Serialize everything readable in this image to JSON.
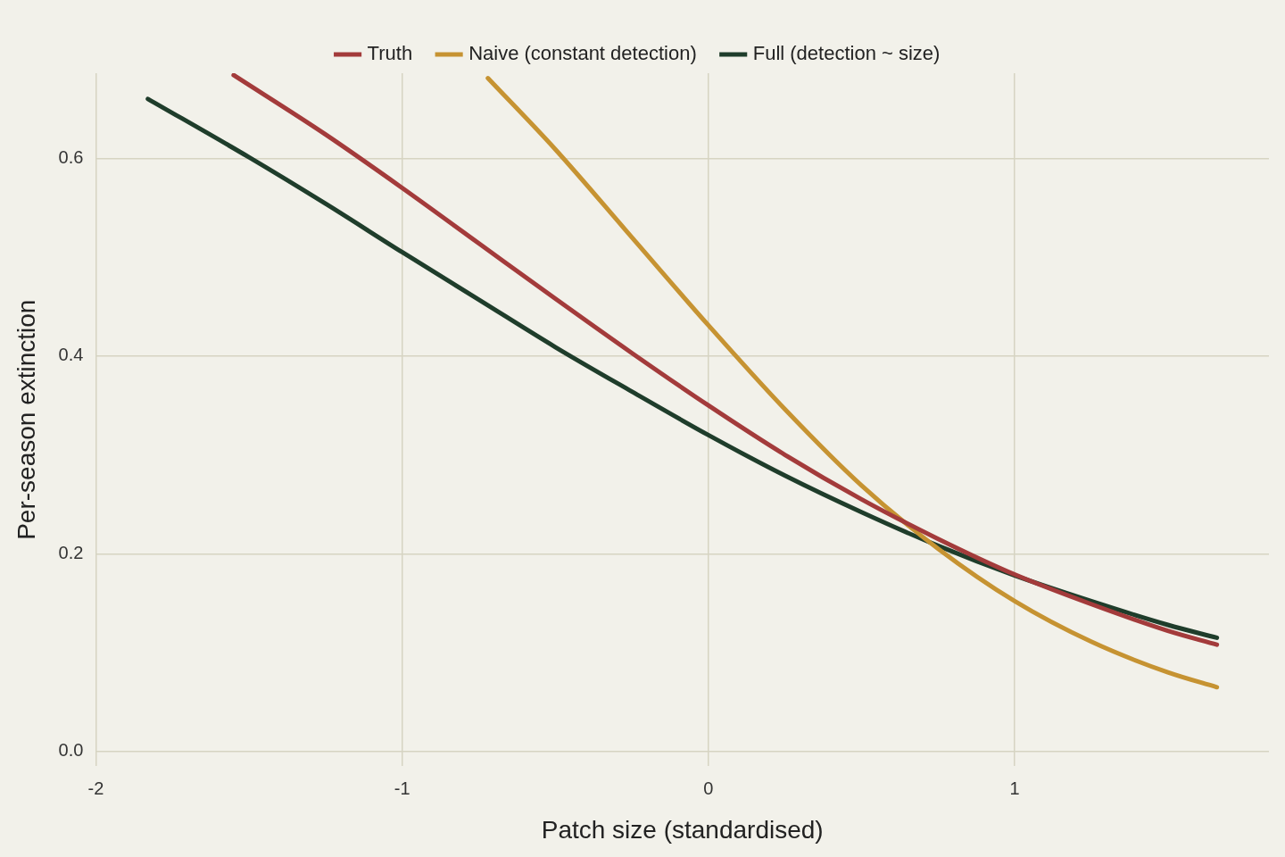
{
  "chart_data": {
    "type": "line",
    "xlabel": "Patch size (standardised)",
    "ylabel": "Per-season extinction",
    "xlim": [
      -2,
      1.83
    ],
    "xticks": [
      -2,
      -1,
      0,
      1
    ],
    "ylim": [
      -0.015,
      0.686
    ],
    "yticks": [
      {
        "value": 0,
        "label": "0.0"
      },
      {
        "value": 0.2,
        "label": "0.2"
      },
      {
        "value": 0.4,
        "label": "0.4"
      },
      {
        "value": 0.6,
        "label": "0.6"
      }
    ],
    "grid": true,
    "legend": "top",
    "marker": "none",
    "line_style": "solid",
    "series": [
      {
        "name": "Truth",
        "color": "#a33b3b",
        "x": [
          -1.55,
          -1.25,
          -1,
          -0.75,
          -0.5,
          -0.25,
          0,
          0.25,
          0.5,
          0.75,
          1,
          1.25,
          1.5,
          1.66
        ],
        "values": [
          0.684,
          0.624,
          0.57,
          0.514,
          0.458,
          0.403,
          0.35,
          0.3,
          0.255,
          0.215,
          0.179,
          0.149,
          0.122,
          0.108
        ]
      },
      {
        "name": "Naive (constant detection)",
        "color": "#c69332",
        "x": [
          -0.72,
          -0.5,
          -0.25,
          0,
          0.25,
          0.5,
          0.75,
          1,
          1.25,
          1.5,
          1.66
        ],
        "values": [
          0.681,
          0.609,
          0.52,
          0.431,
          0.346,
          0.269,
          0.205,
          0.152,
          0.111,
          0.08,
          0.065
        ]
      },
      {
        "name": "Full (detection ~ size)",
        "color": "#1f3d2b",
        "x": [
          -1.83,
          -1.5,
          -1.25,
          -1,
          -0.75,
          -0.5,
          -0.25,
          0,
          0.25,
          0.5,
          0.75,
          1,
          1.25,
          1.5,
          1.66
        ],
        "values": [
          0.66,
          0.601,
          0.554,
          0.505,
          0.457,
          0.409,
          0.364,
          0.32,
          0.279,
          0.242,
          0.208,
          0.178,
          0.152,
          0.128,
          0.115
        ]
      }
    ]
  }
}
